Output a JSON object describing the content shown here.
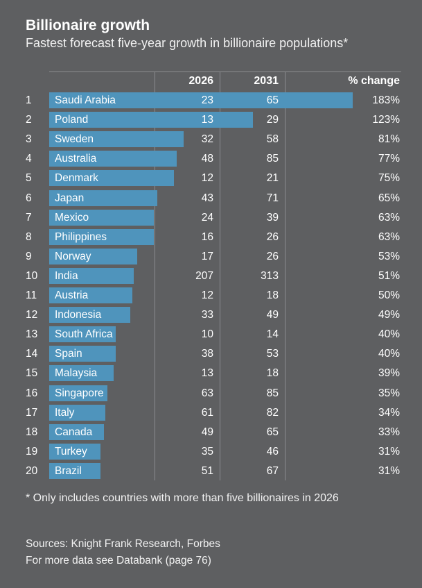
{
  "title": "Billionaire growth",
  "subtitle": "Fastest forecast five-year growth in billionaire populations*",
  "columns": {
    "c2026": "2026",
    "c2031": "2031",
    "change": "% change"
  },
  "chart_data": {
    "type": "table",
    "rows": [
      {
        "rank": "1",
        "country": "Saudi Arabia",
        "v2026": "23",
        "v2031": "65",
        "change": "183%",
        "pct": 183
      },
      {
        "rank": "2",
        "country": "Poland",
        "v2026": "13",
        "v2031": "29",
        "change": "123%",
        "pct": 123
      },
      {
        "rank": "3",
        "country": "Sweden",
        "v2026": "32",
        "v2031": "58",
        "change": "81%",
        "pct": 81
      },
      {
        "rank": "4",
        "country": "Australia",
        "v2026": "48",
        "v2031": "85",
        "change": "77%",
        "pct": 77
      },
      {
        "rank": "5",
        "country": "Denmark",
        "v2026": "12",
        "v2031": "21",
        "change": "75%",
        "pct": 75
      },
      {
        "rank": "6",
        "country": "Japan",
        "v2026": "43",
        "v2031": "71",
        "change": "65%",
        "pct": 65
      },
      {
        "rank": "7",
        "country": "Mexico",
        "v2026": "24",
        "v2031": "39",
        "change": "63%",
        "pct": 63
      },
      {
        "rank": "8",
        "country": "Philippines",
        "v2026": "16",
        "v2031": "26",
        "change": "63%",
        "pct": 63
      },
      {
        "rank": "9",
        "country": "Norway",
        "v2026": "17",
        "v2031": "26",
        "change": "53%",
        "pct": 53
      },
      {
        "rank": "10",
        "country": "India",
        "v2026": "207",
        "v2031": "313",
        "change": "51%",
        "pct": 51
      },
      {
        "rank": "11",
        "country": "Austria",
        "v2026": "12",
        "v2031": "18",
        "change": "50%",
        "pct": 50
      },
      {
        "rank": "12",
        "country": "Indonesia",
        "v2026": "33",
        "v2031": "49",
        "change": "49%",
        "pct": 49
      },
      {
        "rank": "13",
        "country": "South Africa",
        "v2026": "10",
        "v2031": "14",
        "change": "40%",
        "pct": 40
      },
      {
        "rank": "14",
        "country": "Spain",
        "v2026": "38",
        "v2031": "53",
        "change": "40%",
        "pct": 40
      },
      {
        "rank": "15",
        "country": "Malaysia",
        "v2026": "13",
        "v2031": "18",
        "change": "39%",
        "pct": 39
      },
      {
        "rank": "16",
        "country": "Singapore",
        "v2026": "63",
        "v2031": "85",
        "change": "35%",
        "pct": 35
      },
      {
        "rank": "17",
        "country": "Italy",
        "v2026": "61",
        "v2031": "82",
        "change": "34%",
        "pct": 34
      },
      {
        "rank": "18",
        "country": "Canada",
        "v2026": "49",
        "v2031": "65",
        "change": "33%",
        "pct": 33
      },
      {
        "rank": "19",
        "country": "Turkey",
        "v2026": "35",
        "v2031": "46",
        "change": "31%",
        "pct": 31
      },
      {
        "rank": "20",
        "country": "Brazil",
        "v2026": "51",
        "v2031": "67",
        "change": "31%",
        "pct": 31
      }
    ],
    "bar_color": "#4f94bc"
  },
  "footnote": "* Only includes countries with more than five billionaires in 2026",
  "sources_line1": "Sources: Knight Frank Research, Forbes",
  "sources_line2": "For more data see Databank (page 76)"
}
